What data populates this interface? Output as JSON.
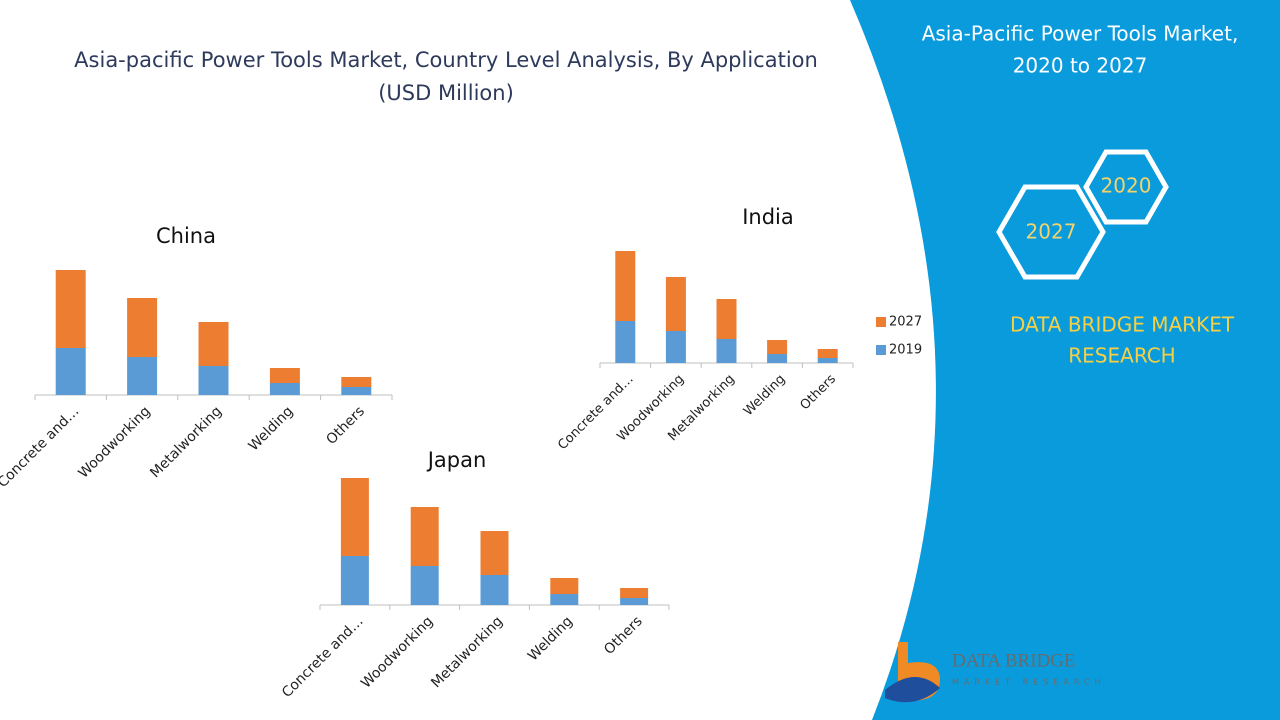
{
  "header": {
    "title_lines": [
      "Asia-pacific Power Tools Market, Country Level Analysis, By Application",
      "(USD Million)"
    ]
  },
  "panel": {
    "title_lines": [
      "Asia-Pacific Power Tools Market,",
      "2020 to 2027"
    ],
    "hex_small": "2020",
    "hex_large": "2027",
    "brand_lines": [
      "DATA BRIDGE MARKET",
      "RESEARCH"
    ],
    "logo_name": "DATA BRIDGE",
    "logo_sub": "MARKET RESEARCH"
  },
  "chart_data": [
    {
      "type": "bar",
      "stacked": true,
      "title": "China",
      "legend": false,
      "categories": [
        "Concrete and…",
        "Woodworking",
        "Metalworking",
        "Welding",
        "Others"
      ],
      "series": [
        {
          "color": "#5b9bd5",
          "values": [
            47,
            38,
            29,
            12,
            8
          ]
        },
        {
          "color": "#ed7d31",
          "values": [
            78,
            59,
            44,
            15,
            10
          ]
        }
      ]
    },
    {
      "type": "bar",
      "stacked": true,
      "title": "India",
      "legend": true,
      "categories": [
        "Concrete and…",
        "Woodworking",
        "Metalworking",
        "Welding",
        "Others"
      ],
      "series": [
        {
          "name": "2019",
          "color": "#5b9bd5",
          "values": [
            42,
            32,
            24,
            9,
            5
          ]
        },
        {
          "name": "2027",
          "color": "#ed7d31",
          "values": [
            70,
            54,
            40,
            14,
            9
          ]
        }
      ]
    },
    {
      "type": "bar",
      "stacked": true,
      "title": "Japan",
      "legend": false,
      "categories": [
        "Concrete and…",
        "Woodworking",
        "Metalworking",
        "Welding",
        "Others"
      ],
      "series": [
        {
          "color": "#5b9bd5",
          "values": [
            49,
            39,
            30,
            11,
            7
          ]
        },
        {
          "color": "#ed7d31",
          "values": [
            78,
            59,
            44,
            16,
            10
          ]
        }
      ]
    }
  ]
}
